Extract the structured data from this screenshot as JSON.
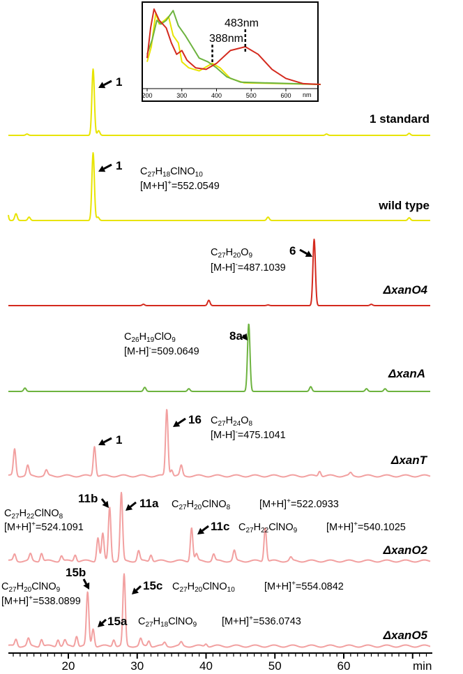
{
  "chart_data": {
    "type": "line",
    "xlabel": "min",
    "xlim": [
      10,
      72
    ],
    "x_ticks": [
      20,
      30,
      40,
      50,
      60
    ],
    "x_tick_labels": [
      "20",
      "30",
      "40",
      "50",
      "60"
    ],
    "uv_inset": {
      "x_ticks": [
        200,
        300,
        400,
        500,
        600
      ],
      "x_tick_labels": [
        "200",
        "300",
        "400",
        "500",
        "600"
      ],
      "x_unit": "nm",
      "xlim": [
        190,
        700
      ],
      "markers": [
        {
          "text": "388nm",
          "x": 388
        },
        {
          "text": "483nm",
          "x": 483
        }
      ],
      "series": [
        {
          "color": "#e8e400",
          "points": [
            [
              200,
              0.3
            ],
            [
              212,
              0.5
            ],
            [
              225,
              0.95
            ],
            [
              235,
              0.8
            ],
            [
              250,
              0.85
            ],
            [
              262,
              0.9
            ],
            [
              275,
              0.65
            ],
            [
              290,
              0.55
            ],
            [
              300,
              0.3
            ],
            [
              320,
              0.22
            ],
            [
              350,
              0.18
            ],
            [
              388,
              0.28
            ],
            [
              410,
              0.22
            ],
            [
              440,
              0.08
            ],
            [
              480,
              0.02
            ],
            [
              700,
              0.0
            ]
          ]
        },
        {
          "color": "#6db33f",
          "points": [
            [
              200,
              0.4
            ],
            [
              215,
              0.6
            ],
            [
              228,
              0.85
            ],
            [
              240,
              0.8
            ],
            [
              255,
              0.85
            ],
            [
              275,
              0.98
            ],
            [
              290,
              0.78
            ],
            [
              310,
              0.65
            ],
            [
              330,
              0.5
            ],
            [
              350,
              0.35
            ],
            [
              375,
              0.3
            ],
            [
              400,
              0.22
            ],
            [
              430,
              0.1
            ],
            [
              470,
              0.03
            ],
            [
              700,
              0.0
            ]
          ]
        },
        {
          "color": "#d42a1e",
          "points": [
            [
              200,
              0.35
            ],
            [
              210,
              0.75
            ],
            [
              220,
              1.0
            ],
            [
              235,
              0.85
            ],
            [
              245,
              0.8
            ],
            [
              255,
              0.75
            ],
            [
              270,
              0.55
            ],
            [
              285,
              0.4
            ],
            [
              300,
              0.45
            ],
            [
              315,
              0.32
            ],
            [
              340,
              0.22
            ],
            [
              370,
              0.2
            ],
            [
              400,
              0.28
            ],
            [
              440,
              0.45
            ],
            [
              483,
              0.5
            ],
            [
              520,
              0.4
            ],
            [
              560,
              0.2
            ],
            [
              600,
              0.08
            ],
            [
              650,
              0.01
            ],
            [
              700,
              0.0
            ]
          ]
        }
      ]
    },
    "series": [
      {
        "name": "1 standard",
        "color": "#e8e400",
        "peaks": [
          [
            14.0,
            0.02
          ],
          [
            23.6,
            1.0
          ],
          [
            24.4,
            0.07
          ],
          [
            57.5,
            0.02
          ],
          [
            69.5,
            0.03
          ]
        ]
      },
      {
        "name": "wild type",
        "color": "#e8e400",
        "peaks": [
          [
            11.0,
            0.3
          ],
          [
            12.4,
            0.1
          ],
          [
            14.3,
            0.05
          ],
          [
            23.6,
            1.0
          ],
          [
            24.3,
            0.05
          ],
          [
            49.0,
            0.05
          ],
          [
            69.5,
            0.04
          ]
        ]
      },
      {
        "name": "ΔxanO4",
        "color": "#d42a1e",
        "peaks": [
          [
            30.9,
            0.02
          ],
          [
            40.4,
            0.08
          ],
          [
            49.0,
            0.01
          ],
          [
            55.7,
            1.0
          ],
          [
            64.0,
            0.02
          ]
        ]
      },
      {
        "name": "ΔxanA",
        "color": "#6db33f",
        "peaks": [
          [
            13.7,
            0.05
          ],
          [
            31.1,
            0.06
          ],
          [
            37.5,
            0.04
          ],
          [
            46.2,
            1.0
          ],
          [
            55.2,
            0.07
          ],
          [
            63.3,
            0.04
          ],
          [
            66.0,
            0.04
          ]
        ]
      },
      {
        "name": "ΔxanT",
        "color": "#f2a0a0",
        "peaks": [
          [
            12.2,
            0.4
          ],
          [
            14.1,
            0.15
          ],
          [
            16.8,
            0.08
          ],
          [
            23.8,
            0.45
          ],
          [
            34.3,
            1.0
          ],
          [
            35.0,
            0.1
          ],
          [
            36.4,
            0.15
          ],
          [
            56.5,
            0.08
          ],
          [
            61.0,
            0.04
          ]
        ]
      },
      {
        "name": "ΔxanO2",
        "color": "#f2a0a0",
        "peaks": [
          [
            12.2,
            0.1
          ],
          [
            14.5,
            0.1
          ],
          [
            16.1,
            0.12
          ],
          [
            19.0,
            0.08
          ],
          [
            21.0,
            0.1
          ],
          [
            24.3,
            0.35
          ],
          [
            25.0,
            0.4
          ],
          [
            26.0,
            0.8
          ],
          [
            27.7,
            1.0
          ],
          [
            30.2,
            0.15
          ],
          [
            32.0,
            0.1
          ],
          [
            37.9,
            0.5
          ],
          [
            38.6,
            0.1
          ],
          [
            41.1,
            0.1
          ],
          [
            44.1,
            0.15
          ],
          [
            48.6,
            0.5
          ],
          [
            52.3,
            0.05
          ]
        ]
      },
      {
        "name": "ΔxanO5",
        "color": "#f2a0a0",
        "peaks": [
          [
            12.4,
            0.1
          ],
          [
            14.2,
            0.1
          ],
          [
            16.1,
            0.1
          ],
          [
            18.5,
            0.1
          ],
          [
            19.5,
            0.08
          ],
          [
            21.2,
            0.15
          ],
          [
            22.8,
            0.75
          ],
          [
            23.6,
            0.25
          ],
          [
            26.6,
            0.1
          ],
          [
            28.1,
            1.0
          ],
          [
            30.5,
            0.1
          ],
          [
            31.7,
            0.08
          ],
          [
            34.0,
            0.05
          ],
          [
            36.4,
            0.05
          ],
          [
            40.0,
            0.04
          ]
        ]
      }
    ],
    "annotations": {
      "std_1": "1",
      "wt_1": "1",
      "wt_formula": "C27H18ClNO10",
      "wt_mass": "[M+H]+=552.0549",
      "o4_6": "6",
      "o4_formula": "C27H20O9",
      "o4_mass": "[M-H]-=487.1039",
      "a_8a": "8a",
      "a_formula": "C26H19ClO9",
      "a_mass": "[M-H]-=509.0649",
      "t_1": "1",
      "t_16": "16",
      "t_formula": "C27H24O8",
      "t_mass": "[M-H]-=475.1041",
      "o2_11b": "11b",
      "o2_11b_formula": "C27H22ClNO8",
      "o2_11b_mass": "[M+H]+=524.1091",
      "o2_11a": "11a",
      "o2_11a_formula": "C27H20ClNO8",
      "o2_11a_mass": "[M+H]+=522.0933",
      "o2_11c": "11c",
      "o2_11c_formula": "C27H22ClNO9",
      "o2_11c_mass": "[M+H]+=540.1025",
      "o5_15b": "15b",
      "o5_15b_formula": "C27H20ClNO9",
      "o5_15b_mass": "[M+H]+=538.0899",
      "o5_15c": "15c",
      "o5_15c_formula": "C27H20ClNO10",
      "o5_15c_mass": "[M+H]+=554.0842",
      "o5_15a": "15a",
      "o5_15a_formula": "C27H18ClNO9",
      "o5_15a_mass": "[M+H]+=536.0743"
    }
  }
}
